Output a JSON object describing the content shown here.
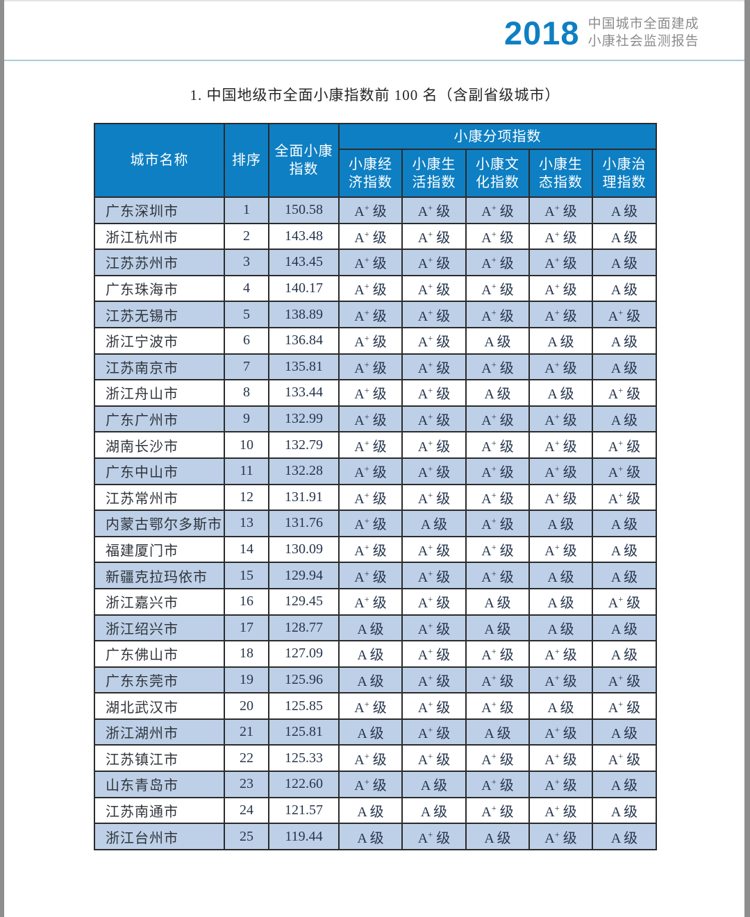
{
  "header": {
    "year": "2018",
    "subtitle": "中国城市全面建成\n小康社会监测报告"
  },
  "title": "1. 中国地级市全面小康指数前 100 名（含副省级城市）",
  "table": {
    "col_city": "城市名称",
    "col_rank": "排序",
    "col_overall": "全面小康\n指数",
    "col_group": "小康分项指数",
    "subcols": [
      "小康经\n济指数",
      "小康生\n活指数",
      "小康文\n化指数",
      "小康生\n态指数",
      "小康治\n理指数"
    ],
    "grade_suffix": "级",
    "rows": [
      {
        "city": "广东深圳市",
        "rank": "1",
        "index": "150.58",
        "grades": [
          "A+",
          "A+",
          "A+",
          "A+",
          "A"
        ]
      },
      {
        "city": "浙江杭州市",
        "rank": "2",
        "index": "143.48",
        "grades": [
          "A+",
          "A+",
          "A+",
          "A+",
          "A"
        ]
      },
      {
        "city": "江苏苏州市",
        "rank": "3",
        "index": "143.45",
        "grades": [
          "A+",
          "A+",
          "A+",
          "A+",
          "A"
        ]
      },
      {
        "city": "广东珠海市",
        "rank": "4",
        "index": "140.17",
        "grades": [
          "A+",
          "A+",
          "A+",
          "A+",
          "A"
        ]
      },
      {
        "city": "江苏无锡市",
        "rank": "5",
        "index": "138.89",
        "grades": [
          "A+",
          "A+",
          "A+",
          "A+",
          "A+"
        ]
      },
      {
        "city": "浙江宁波市",
        "rank": "6",
        "index": "136.84",
        "grades": [
          "A+",
          "A+",
          "A",
          "A",
          "A"
        ]
      },
      {
        "city": "江苏南京市",
        "rank": "7",
        "index": "135.81",
        "grades": [
          "A+",
          "A+",
          "A+",
          "A+",
          "A"
        ]
      },
      {
        "city": "浙江舟山市",
        "rank": "8",
        "index": "133.44",
        "grades": [
          "A+",
          "A+",
          "A",
          "A",
          "A+"
        ]
      },
      {
        "city": "广东广州市",
        "rank": "9",
        "index": "132.99",
        "grades": [
          "A+",
          "A+",
          "A+",
          "A+",
          "A"
        ]
      },
      {
        "city": "湖南长沙市",
        "rank": "10",
        "index": "132.79",
        "grades": [
          "A+",
          "A+",
          "A+",
          "A+",
          "A+"
        ]
      },
      {
        "city": "广东中山市",
        "rank": "11",
        "index": "132.28",
        "grades": [
          "A+",
          "A+",
          "A+",
          "A+",
          "A+"
        ]
      },
      {
        "city": "江苏常州市",
        "rank": "12",
        "index": "131.91",
        "grades": [
          "A+",
          "A+",
          "A+",
          "A+",
          "A+"
        ]
      },
      {
        "city": "内蒙古鄂尔多斯市",
        "rank": "13",
        "index": "131.76",
        "grades": [
          "A+",
          "A",
          "A+",
          "A",
          "A"
        ]
      },
      {
        "city": "福建厦门市",
        "rank": "14",
        "index": "130.09",
        "grades": [
          "A+",
          "A+",
          "A+",
          "A+",
          "A"
        ]
      },
      {
        "city": "新疆克拉玛依市",
        "rank": "15",
        "index": "129.94",
        "grades": [
          "A+",
          "A+",
          "A+",
          "A",
          "A"
        ]
      },
      {
        "city": "浙江嘉兴市",
        "rank": "16",
        "index": "129.45",
        "grades": [
          "A+",
          "A+",
          "A",
          "A",
          "A+"
        ]
      },
      {
        "city": "浙江绍兴市",
        "rank": "17",
        "index": "128.77",
        "grades": [
          "A",
          "A+",
          "A",
          "A",
          "A"
        ]
      },
      {
        "city": "广东佛山市",
        "rank": "18",
        "index": "127.09",
        "grades": [
          "A",
          "A+",
          "A+",
          "A+",
          "A"
        ]
      },
      {
        "city": "广东东莞市",
        "rank": "19",
        "index": "125.96",
        "grades": [
          "A",
          "A+",
          "A+",
          "A+",
          "A+"
        ]
      },
      {
        "city": "湖北武汉市",
        "rank": "20",
        "index": "125.85",
        "grades": [
          "A+",
          "A+",
          "A+",
          "A",
          "A+"
        ]
      },
      {
        "city": "浙江湖州市",
        "rank": "21",
        "index": "125.81",
        "grades": [
          "A",
          "A+",
          "A",
          "A+",
          "A"
        ]
      },
      {
        "city": "江苏镇江市",
        "rank": "22",
        "index": "125.33",
        "grades": [
          "A+",
          "A+",
          "A+",
          "A+",
          "A+"
        ]
      },
      {
        "city": "山东青岛市",
        "rank": "23",
        "index": "122.60",
        "grades": [
          "A+",
          "A",
          "A+",
          "A+",
          "A"
        ]
      },
      {
        "city": "江苏南通市",
        "rank": "24",
        "index": "121.57",
        "grades": [
          "A",
          "A",
          "A+",
          "A+",
          "A"
        ]
      },
      {
        "city": "浙江台州市",
        "rank": "25",
        "index": "119.44",
        "grades": [
          "A",
          "A+",
          "A",
          "A+",
          "A"
        ]
      }
    ]
  },
  "colors": {
    "accent_blue": "#0e7fc3",
    "row_alt_blue": "#bdd0e7",
    "border_dark": "#2b2b2b",
    "brand_gray": "#8c8c8c",
    "divider_blue": "#a7cbdb",
    "page_edge_gray": "#8e8e8e"
  }
}
